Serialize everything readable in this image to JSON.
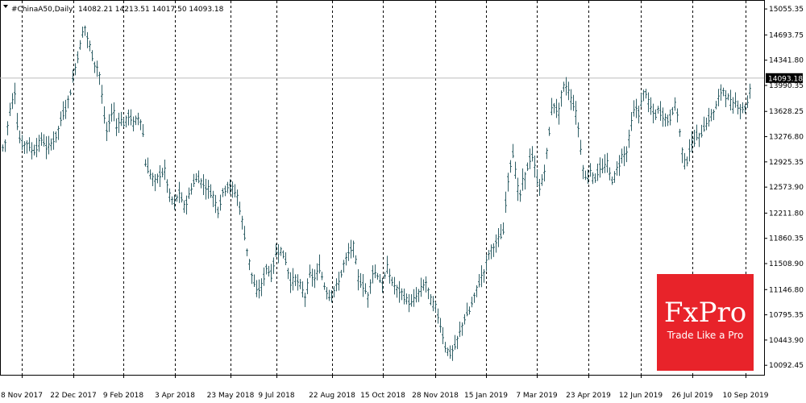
{
  "header": {
    "symbol": "#ChinaA50,Daily",
    "values": "14082.21 14213.51 14017.50 14093.18"
  },
  "logo": {
    "brand": "FxPro",
    "tagline": "Trade Like a Pro"
  },
  "colors": {
    "bars": "#2f5f66",
    "grid": "#000000",
    "price_line": "#bbbbbb",
    "badge_bg": "#000000",
    "logo_bg": "#e8232a"
  },
  "chart_data": {
    "type": "ohlc",
    "title": "",
    "xlabel": "",
    "ylabel": "",
    "ylim": [
      9960,
      15180
    ],
    "y_ticks": [
      "15055.35",
      "14693.75",
      "14341.80",
      "13990.35",
      "13628.25",
      "13276.80",
      "12925.35",
      "12573.90",
      "12211.80",
      "11860.35",
      "11508.90",
      "11146.80",
      "10795.35",
      "10443.90",
      "10092.45"
    ],
    "x_ticks": [
      "8 Nov 2017",
      "22 Dec 2017",
      "9 Feb 2018",
      "3 Apr 2018",
      "23 May 2018",
      "9 Jul 2018",
      "22 Aug 2018",
      "15 Oct 2018",
      "28 Nov 2018",
      "15 Jan 2019",
      "7 Mar 2019",
      "23 Apr 2019",
      "12 Jun 2019",
      "26 Jul 2019",
      "10 Sep 2019"
    ],
    "grid": "vertical-dashed",
    "current_price": 14093.18,
    "current_price_label": "14093.18",
    "close_path": [
      [
        0,
        13050
      ],
      [
        6,
        13200
      ],
      [
        12,
        13650
      ],
      [
        18,
        13900
      ],
      [
        22,
        13300
      ],
      [
        28,
        13150
      ],
      [
        34,
        13200
      ],
      [
        40,
        13050
      ],
      [
        46,
        13150
      ],
      [
        52,
        13250
      ],
      [
        58,
        13100
      ],
      [
        64,
        13200
      ],
      [
        70,
        13300
      ],
      [
        76,
        13550
      ],
      [
        82,
        13700
      ],
      [
        88,
        13950
      ],
      [
        94,
        14300
      ],
      [
        100,
        14600
      ],
      [
        104,
        14850
      ],
      [
        108,
        14650
      ],
      [
        112,
        14500
      ],
      [
        116,
        14300
      ],
      [
        120,
        14250
      ],
      [
        124,
        14100
      ],
      [
        128,
        13600
      ],
      [
        132,
        13350
      ],
      [
        136,
        13500
      ],
      [
        140,
        13700
      ],
      [
        144,
        13400
      ],
      [
        148,
        13550
      ],
      [
        152,
        13450
      ],
      [
        156,
        13500
      ],
      [
        160,
        13600
      ],
      [
        164,
        13450
      ],
      [
        168,
        13500
      ],
      [
        172,
        13550
      ],
      [
        176,
        13450
      ],
      [
        180,
        12900
      ],
      [
        186,
        12750
      ],
      [
        192,
        12650
      ],
      [
        198,
        12750
      ],
      [
        204,
        12800
      ],
      [
        210,
        12450
      ],
      [
        216,
        12350
      ],
      [
        222,
        12500
      ],
      [
        228,
        12300
      ],
      [
        234,
        12450
      ],
      [
        240,
        12650
      ],
      [
        246,
        12700
      ],
      [
        252,
        12600
      ],
      [
        258,
        12550
      ],
      [
        264,
        12450
      ],
      [
        270,
        12250
      ],
      [
        276,
        12500
      ],
      [
        282,
        12600
      ],
      [
        288,
        12550
      ],
      [
        294,
        12450
      ],
      [
        300,
        12100
      ],
      [
        306,
        11700
      ],
      [
        312,
        11350
      ],
      [
        318,
        11100
      ],
      [
        324,
        11200
      ],
      [
        330,
        11450
      ],
      [
        336,
        11350
      ],
      [
        342,
        11650
      ],
      [
        348,
        11700
      ],
      [
        354,
        11550
      ],
      [
        360,
        11250
      ],
      [
        366,
        11300
      ],
      [
        372,
        11200
      ],
      [
        378,
        11050
      ],
      [
        384,
        11350
      ],
      [
        390,
        11300
      ],
      [
        396,
        11450
      ],
      [
        402,
        11200
      ],
      [
        408,
        11050
      ],
      [
        414,
        11150
      ],
      [
        420,
        11250
      ],
      [
        426,
        11500
      ],
      [
        432,
        11650
      ],
      [
        438,
        11750
      ],
      [
        444,
        11300
      ],
      [
        450,
        11200
      ],
      [
        456,
        11050
      ],
      [
        462,
        11400
      ],
      [
        468,
        11350
      ],
      [
        474,
        11200
      ],
      [
        480,
        11450
      ],
      [
        486,
        11250
      ],
      [
        492,
        11150
      ],
      [
        498,
        11100
      ],
      [
        504,
        11000
      ],
      [
        510,
        10950
      ],
      [
        516,
        11050
      ],
      [
        522,
        11150
      ],
      [
        528,
        11250
      ],
      [
        534,
        11000
      ],
      [
        540,
        10900
      ],
      [
        546,
        10650
      ],
      [
        552,
        10350
      ],
      [
        558,
        10250
      ],
      [
        564,
        10350
      ],
      [
        570,
        10550
      ],
      [
        576,
        10750
      ],
      [
        582,
        10850
      ],
      [
        588,
        11050
      ],
      [
        594,
        11250
      ],
      [
        600,
        11400
      ],
      [
        606,
        11650
      ],
      [
        612,
        11750
      ],
      [
        618,
        11850
      ],
      [
        624,
        11950
      ],
      [
        628,
        12500
      ],
      [
        632,
        12850
      ],
      [
        636,
        13050
      ],
      [
        640,
        12700
      ],
      [
        644,
        12400
      ],
      [
        648,
        12650
      ],
      [
        652,
        12750
      ],
      [
        656,
        12950
      ],
      [
        660,
        13000
      ],
      [
        664,
        12800
      ],
      [
        668,
        12550
      ],
      [
        672,
        12650
      ],
      [
        676,
        12850
      ],
      [
        680,
        13250
      ],
      [
        684,
        13650
      ],
      [
        688,
        13750
      ],
      [
        692,
        13550
      ],
      [
        696,
        13850
      ],
      [
        700,
        14000
      ],
      [
        704,
        13950
      ],
      [
        708,
        13800
      ],
      [
        712,
        13700
      ],
      [
        716,
        13500
      ],
      [
        720,
        13100
      ],
      [
        724,
        12750
      ],
      [
        728,
        12650
      ],
      [
        732,
        12850
      ],
      [
        736,
        12650
      ],
      [
        740,
        12750
      ],
      [
        744,
        12850
      ],
      [
        748,
        12800
      ],
      [
        752,
        12950
      ],
      [
        756,
        12750
      ],
      [
        760,
        12650
      ],
      [
        764,
        12800
      ],
      [
        768,
        12900
      ],
      [
        772,
        13050
      ],
      [
        776,
        13000
      ],
      [
        780,
        13250
      ],
      [
        784,
        13550
      ],
      [
        788,
        13700
      ],
      [
        792,
        13600
      ],
      [
        796,
        13800
      ],
      [
        800,
        13950
      ],
      [
        804,
        13750
      ],
      [
        808,
        13650
      ],
      [
        812,
        13550
      ],
      [
        816,
        13650
      ],
      [
        820,
        13600
      ],
      [
        824,
        13550
      ],
      [
        828,
        13500
      ],
      [
        832,
        13550
      ],
      [
        836,
        13750
      ],
      [
        840,
        13600
      ],
      [
        844,
        13250
      ],
      [
        848,
        12900
      ],
      [
        852,
        12950
      ],
      [
        856,
        13150
      ],
      [
        860,
        13200
      ],
      [
        864,
        13300
      ],
      [
        868,
        13250
      ],
      [
        872,
        13400
      ],
      [
        876,
        13450
      ],
      [
        880,
        13550
      ],
      [
        884,
        13600
      ],
      [
        888,
        13700
      ],
      [
        892,
        13850
      ],
      [
        896,
        13950
      ],
      [
        900,
        13850
      ],
      [
        904,
        13800
      ],
      [
        908,
        13700
      ],
      [
        912,
        13750
      ],
      [
        916,
        13700
      ],
      [
        920,
        13650
      ],
      [
        924,
        13700
      ],
      [
        928,
        13750
      ],
      [
        932,
        14093
      ]
    ]
  }
}
